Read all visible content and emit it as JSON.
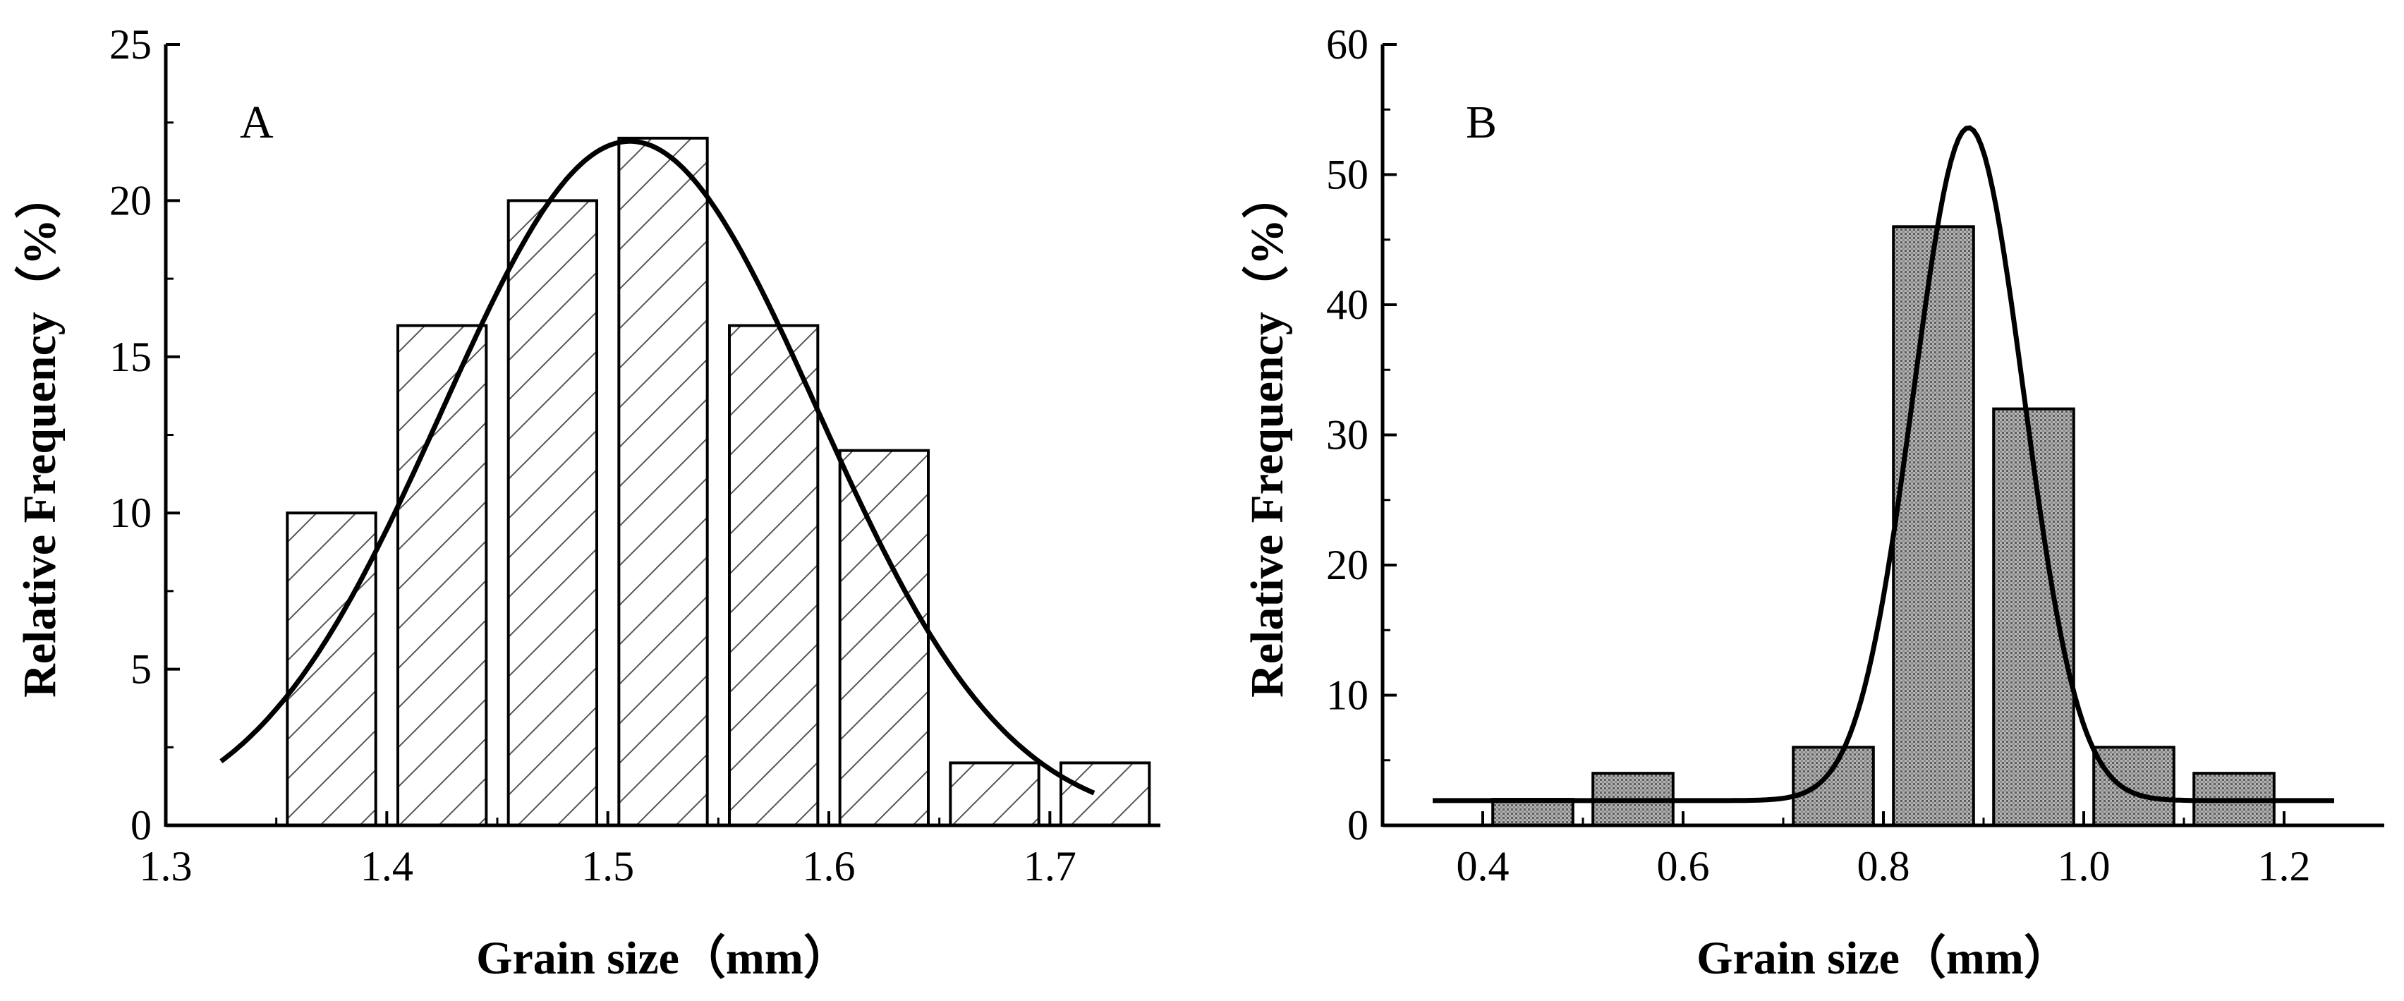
{
  "chart_data": [
    {
      "type": "bar",
      "panel_label": "A",
      "fill": "hatched",
      "xlabel": "Grain size（mm）",
      "ylabel": "Relative Frequency（%）",
      "xlim": [
        1.3,
        1.75
      ],
      "ylim": [
        0,
        25
      ],
      "xticks": [
        1.3,
        1.4,
        1.5,
        1.6,
        1.7
      ],
      "xtick_labels": [
        "1.3",
        "1.4",
        "1.5",
        "1.6",
        "1.7"
      ],
      "yticks": [
        0,
        5,
        10,
        15,
        20,
        25
      ],
      "ytick_labels": [
        "0",
        "5",
        "10",
        "15",
        "20",
        "25"
      ],
      "bar_width": 0.04,
      "x": [
        1.375,
        1.425,
        1.475,
        1.525,
        1.575,
        1.625,
        1.675,
        1.725
      ],
      "values": [
        10,
        16,
        20,
        22,
        16,
        12,
        2,
        2
      ],
      "fit_curve": {
        "type": "normal",
        "mean": 1.51,
        "sd": 0.085,
        "peak": 21.9,
        "x_range": [
          1.325,
          1.72
        ]
      }
    },
    {
      "type": "bar",
      "panel_label": "B",
      "fill": "gray-dotted",
      "xlabel": "Grain size（mm）",
      "ylabel": "Relative Frequency（%）",
      "xlim": [
        0.3,
        1.3
      ],
      "ylim": [
        0,
        60
      ],
      "xticks": [
        0.4,
        0.6,
        0.8,
        1.0,
        1.2
      ],
      "xtick_labels": [
        "0.4",
        "0.6",
        "0.8",
        "1.0",
        "1.2"
      ],
      "yticks": [
        0,
        10,
        20,
        30,
        40,
        50,
        60
      ],
      "ytick_labels": [
        "0",
        "10",
        "20",
        "30",
        "40",
        "50",
        "60"
      ],
      "bar_width": 0.08,
      "x": [
        0.45,
        0.55,
        0.75,
        0.85,
        0.95,
        1.05,
        1.15
      ],
      "values": [
        2,
        4,
        6,
        46,
        32,
        6,
        4
      ],
      "fit_curve": {
        "type": "normal",
        "mean": 0.885,
        "sd": 0.055,
        "peak": 51.7,
        "baseline": 1.9,
        "x_range": [
          0.35,
          1.25
        ]
      }
    }
  ]
}
